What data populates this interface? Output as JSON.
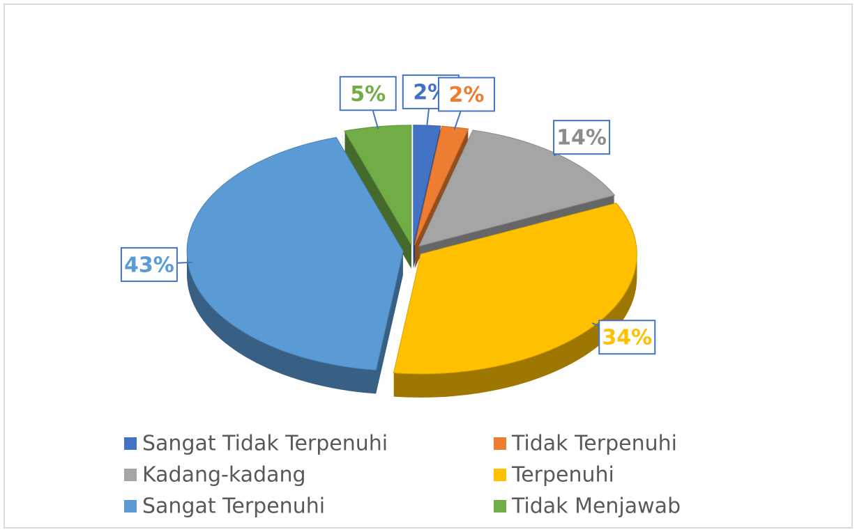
{
  "chart_data": {
    "type": "pie",
    "categories": [
      "Sangat Tidak Terpenuhi",
      "Tidak Terpenuhi",
      "Kadang-kadang",
      "Terpenuhi",
      "Sangat Terpenuhi",
      "Tidak Menjawab"
    ],
    "values": [
      2,
      2,
      14,
      34,
      43,
      5
    ],
    "value_labels": [
      "2%",
      "2%",
      "14%",
      "34%",
      "43%",
      "5%"
    ],
    "colors": [
      "#4472c4",
      "#ed7d31",
      "#a5a5a5",
      "#ffc000",
      "#5b9bd5",
      "#70ad47"
    ],
    "legend": "bottom"
  }
}
